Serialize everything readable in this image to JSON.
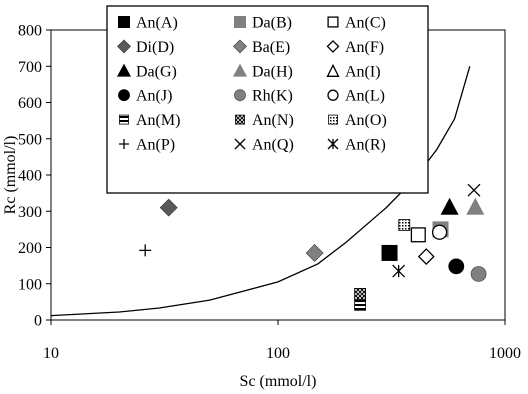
{
  "chart_data": {
    "type": "scatter",
    "title": "",
    "xlabel": "Sc (mmol/l)",
    "ylabel": "Rc (mmol/l)",
    "xscale": "log",
    "xlim": [
      10,
      1000
    ],
    "ylim": [
      0,
      800
    ],
    "x_ticks": [
      "10",
      "100",
      "1000"
    ],
    "y_ticks": [
      "0",
      "100",
      "200",
      "300",
      "400",
      "500",
      "600",
      "700",
      "800"
    ],
    "grid": false,
    "legend_position": "top-left inside plot",
    "series": [
      {
        "name": "An(A)",
        "marker": "square-filled",
        "color": "#000000",
        "points": [
          {
            "x": 310,
            "y": 185
          }
        ]
      },
      {
        "name": "Da(B)",
        "marker": "square-filled",
        "color": "#808080",
        "points": [
          {
            "x": 520,
            "y": 250
          }
        ]
      },
      {
        "name": "An(C)",
        "marker": "square-open",
        "color": "#000000",
        "points": [
          {
            "x": 415,
            "y": 235
          }
        ]
      },
      {
        "name": "Di(D)",
        "marker": "diamond-filled",
        "color": "#595959",
        "points": [
          {
            "x": 33,
            "y": 310
          }
        ]
      },
      {
        "name": "Ba(E)",
        "marker": "diamond-filled",
        "color": "#808080",
        "points": [
          {
            "x": 145,
            "y": 185
          }
        ]
      },
      {
        "name": "An(F)",
        "marker": "diamond-open",
        "color": "#000000",
        "points": [
          {
            "x": 450,
            "y": 175
          }
        ]
      },
      {
        "name": "Da(G)",
        "marker": "triangle-filled",
        "color": "#000000",
        "points": [
          {
            "x": 570,
            "y": 312
          }
        ]
      },
      {
        "name": "Da(H)",
        "marker": "triangle-filled",
        "color": "#808080",
        "points": [
          {
            "x": 740,
            "y": 312
          }
        ]
      },
      {
        "name": "An(I)",
        "marker": "triangle-open",
        "color": "#000000",
        "points": []
      },
      {
        "name": "An(J)",
        "marker": "circle-filled",
        "color": "#000000",
        "points": [
          {
            "x": 610,
            "y": 148
          }
        ]
      },
      {
        "name": "Rh(K)",
        "marker": "circle-filled",
        "color": "#808080",
        "points": [
          {
            "x": 765,
            "y": 127
          }
        ]
      },
      {
        "name": "An(L)",
        "marker": "circle-open",
        "color": "#000000",
        "points": [
          {
            "x": 515,
            "y": 242
          }
        ]
      },
      {
        "name": "An(M)",
        "marker": "square-striped",
        "color": "#000000",
        "points": [
          {
            "x": 230,
            "y": 42
          }
        ]
      },
      {
        "name": "An(N)",
        "marker": "square-crosshatch",
        "color": "#000000",
        "points": [
          {
            "x": 230,
            "y": 72
          }
        ]
      },
      {
        "name": "An(O)",
        "marker": "square-dotted",
        "color": "#000000",
        "points": [
          {
            "x": 360,
            "y": 262
          }
        ]
      },
      {
        "name": "An(P)",
        "marker": "plus",
        "color": "#000000",
        "points": [
          {
            "x": 26,
            "y": 192
          }
        ]
      },
      {
        "name": "An(Q)",
        "marker": "x",
        "color": "#000000",
        "points": [
          {
            "x": 730,
            "y": 358
          }
        ]
      },
      {
        "name": "An(R)",
        "marker": "asterisk",
        "color": "#000000",
        "points": [
          {
            "x": 340,
            "y": 135
          }
        ]
      }
    ],
    "curve": {
      "color": "#000000",
      "points": [
        {
          "x": 10,
          "y": 12
        },
        {
          "x": 20,
          "y": 22
        },
        {
          "x": 30,
          "y": 33
        },
        {
          "x": 50,
          "y": 55
        },
        {
          "x": 100,
          "y": 105
        },
        {
          "x": 150,
          "y": 155
        },
        {
          "x": 200,
          "y": 215
        },
        {
          "x": 300,
          "y": 310
        },
        {
          "x": 400,
          "y": 390
        },
        {
          "x": 500,
          "y": 470
        },
        {
          "x": 600,
          "y": 555
        },
        {
          "x": 700,
          "y": 700
        }
      ]
    }
  }
}
